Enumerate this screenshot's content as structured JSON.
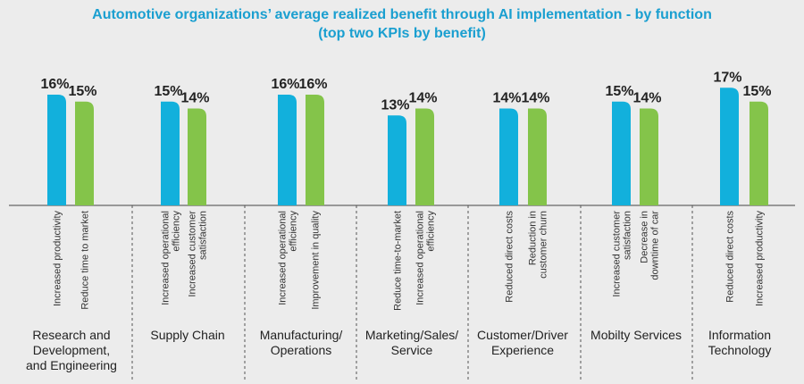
{
  "chart_data": {
    "type": "bar",
    "title": "Automotive organizations’ average realized benefit through AI implementation - by function",
    "subtitle": "(top two KPIs by benefit)",
    "value_suffix": "%",
    "colors": {
      "first": "#12b0dc",
      "second": "#84c44a",
      "divider": "#555555",
      "axis": "#444444",
      "title": "#1a9fd0"
    },
    "groups": [
      {
        "function": [
          "Research and",
          "Development,",
          "and Engineering"
        ],
        "bars": [
          {
            "kpi": [
              "Increased productivity"
            ],
            "value": 16
          },
          {
            "kpi": [
              "Reduce time to market"
            ],
            "value": 15
          }
        ]
      },
      {
        "function": [
          "Supply Chain"
        ],
        "bars": [
          {
            "kpi": [
              "Increased operational",
              "efficiency"
            ],
            "value": 15
          },
          {
            "kpi": [
              "Increased customer",
              "satisfaction"
            ],
            "value": 14
          }
        ]
      },
      {
        "function": [
          "Manufacturing/",
          "Operations"
        ],
        "bars": [
          {
            "kpi": [
              "Increased operational",
              "efficiency"
            ],
            "value": 16
          },
          {
            "kpi": [
              "Improvement in quality"
            ],
            "value": 16
          }
        ]
      },
      {
        "function": [
          "Marketing/Sales/",
          "Service"
        ],
        "bars": [
          {
            "kpi": [
              "Reduce time-to-market"
            ],
            "value": 13
          },
          {
            "kpi": [
              "Increased operational",
              "efficiency"
            ],
            "value": 14
          }
        ]
      },
      {
        "function": [
          "Customer/Driver",
          "Experience"
        ],
        "bars": [
          {
            "kpi": [
              "Reduced direct costs"
            ],
            "value": 14
          },
          {
            "kpi": [
              "Reduction in",
              "customer churn"
            ],
            "value": 14
          }
        ]
      },
      {
        "function": [
          "Mobilty Services"
        ],
        "bars": [
          {
            "kpi": [
              "Increased customer",
              "satisfaction"
            ],
            "value": 15
          },
          {
            "kpi": [
              "Decrease in",
              "downtime of car"
            ],
            "value": 14
          }
        ]
      },
      {
        "function": [
          "Information",
          "Technology"
        ],
        "bars": [
          {
            "kpi": [
              "Reduced direct costs"
            ],
            "value": 17
          },
          {
            "kpi": [
              "Increased productivity"
            ],
            "value": 15
          }
        ]
      }
    ]
  }
}
